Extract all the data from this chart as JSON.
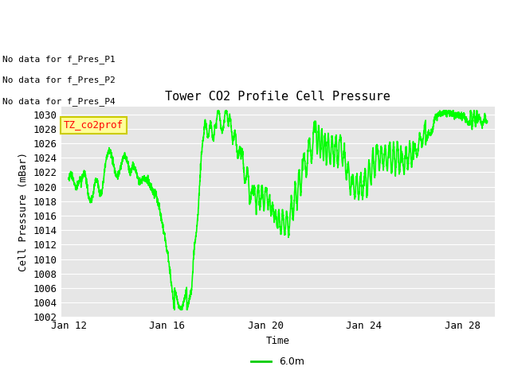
{
  "title": "Tower CO2 Profile Cell Pressure",
  "xlabel": "Time",
  "ylabel": "Cell Pressure (mBar)",
  "ylim": [
    1002,
    1031
  ],
  "xlim": [
    -0.3,
    17.3
  ],
  "line_color": "#00ff00",
  "line_width": 1.2,
  "bg_color": "#e6e6e6",
  "legend_label": "6.0m",
  "legend_line_color": "#00cc00",
  "annotations": [
    "No data for f_Pres_P1",
    "No data for f_Pres_P2",
    "No data for f_Pres_P4"
  ],
  "legend_box_facecolor": "#ffff99",
  "legend_box_edgecolor": "#cccc00",
  "legend_text": "TZ_co2prof",
  "xtick_positions": [
    0,
    4,
    8,
    12,
    16
  ],
  "xtick_labels": [
    "Jan 12",
    "Jan 16",
    "Jan 20",
    "Jan 24",
    "Jan 28"
  ],
  "ytick_min": 1002,
  "ytick_max": 1031,
  "ytick_step": 2
}
